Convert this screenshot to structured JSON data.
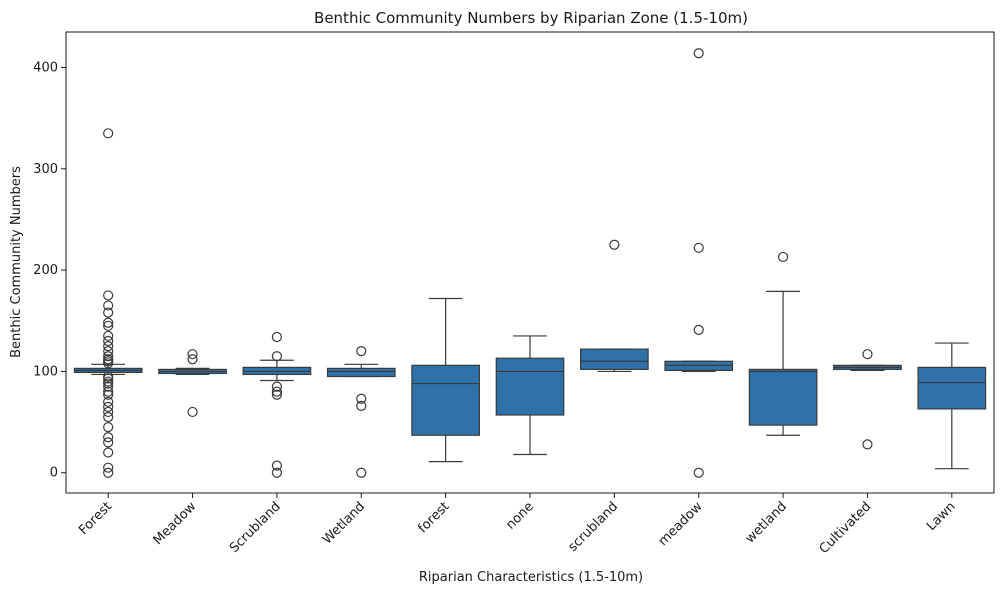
{
  "chart_data": {
    "type": "box",
    "title": "Benthic Community Numbers by Riparian Zone (1.5-10m)",
    "xlabel": "Riparian Characteristics (1.5-10m)",
    "ylabel": "Benthic Community Numbers",
    "ylim": [
      -20,
      435
    ],
    "yticks": [
      0,
      100,
      200,
      300,
      400
    ],
    "grid": false,
    "color": "#2f72aa",
    "categories": [
      "Forest",
      "Meadow",
      "Scrubland",
      "Wetland",
      "forest",
      "none",
      "scrubland",
      "meadow",
      "wetland",
      "Cultivated",
      "Lawn"
    ],
    "boxes": [
      {
        "category": "Forest",
        "whisker_low": 97,
        "q1": 99,
        "median": 101,
        "q3": 103,
        "whisker_high": 107,
        "outliers": [
          335,
          175,
          165,
          158,
          148,
          145,
          135,
          130,
          125,
          120,
          115,
          112,
          110,
          108,
          95,
          93,
          90,
          88,
          85,
          80,
          77,
          70,
          65,
          60,
          55,
          45,
          35,
          30,
          20,
          5,
          0
        ]
      },
      {
        "category": "Meadow",
        "whisker_low": 97,
        "q1": 98,
        "median": 100,
        "q3": 102,
        "whisker_high": 103,
        "outliers": [
          117,
          112,
          60
        ]
      },
      {
        "category": "Scrubland",
        "whisker_low": 91,
        "q1": 97,
        "median": 100,
        "q3": 104,
        "whisker_high": 111,
        "outliers": [
          134,
          115,
          85,
          80,
          77,
          7,
          0
        ]
      },
      {
        "category": "Wetland",
        "whisker_low": 95,
        "q1": 95,
        "median": 100,
        "q3": 103,
        "whisker_high": 107,
        "outliers": [
          120,
          73,
          66,
          0
        ]
      },
      {
        "category": "forest",
        "whisker_low": 11,
        "q1": 37,
        "median": 88,
        "q3": 106,
        "whisker_high": 172,
        "outliers": []
      },
      {
        "category": "none",
        "whisker_low": 18,
        "q1": 57,
        "median": 100,
        "q3": 113,
        "whisker_high": 135,
        "outliers": []
      },
      {
        "category": "scrubland",
        "whisker_low": 100,
        "q1": 102,
        "median": 110,
        "q3": 122,
        "whisker_high": 122,
        "outliers": [
          225
        ]
      },
      {
        "category": "meadow",
        "whisker_low": 100,
        "q1": 101,
        "median": 106,
        "q3": 110,
        "whisker_high": 110,
        "outliers": [
          414,
          222,
          141,
          0
        ]
      },
      {
        "category": "wetland",
        "whisker_low": 37,
        "q1": 47,
        "median": 100,
        "q3": 102,
        "whisker_high": 179,
        "outliers": [
          213
        ]
      },
      {
        "category": "Cultivated",
        "whisker_low": 101,
        "q1": 102,
        "median": 104,
        "q3": 106,
        "whisker_high": 106,
        "outliers": [
          117,
          28
        ]
      },
      {
        "category": "Lawn",
        "whisker_low": 4,
        "q1": 63,
        "median": 89,
        "q3": 104,
        "whisker_high": 128,
        "outliers": []
      }
    ]
  }
}
